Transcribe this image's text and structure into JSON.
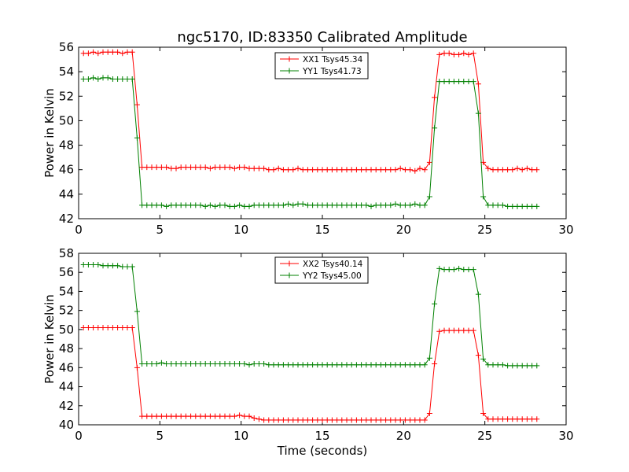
{
  "title": "ngc5170, ID:83350 Calibrated Amplitude",
  "colors": {
    "red": "#ff0000",
    "green": "#008000"
  },
  "chart_data": [
    {
      "type": "line",
      "xlabel": "",
      "ylabel": "Power in Kelvin",
      "xlim": [
        0,
        30
      ],
      "ylim": [
        42,
        56
      ],
      "xticks": [
        0,
        5,
        10,
        15,
        20,
        25,
        30
      ],
      "yticks": [
        42,
        44,
        46,
        48,
        50,
        52,
        54,
        56
      ],
      "legend_position": "top-center",
      "series": [
        {
          "name": "XX1 Tsys45.34",
          "color": "#ff0000",
          "x": [
            0.3,
            0.6,
            0.9,
            1.2,
            1.5,
            1.8,
            2.1,
            2.4,
            2.7,
            3.0,
            3.3,
            3.6,
            3.9,
            4.2,
            4.5,
            4.8,
            5.1,
            5.4,
            5.7,
            6.0,
            6.3,
            6.6,
            6.9,
            7.2,
            7.5,
            7.8,
            8.1,
            8.4,
            8.7,
            9.0,
            9.3,
            9.6,
            9.9,
            10.2,
            10.5,
            10.8,
            11.1,
            11.4,
            11.7,
            12.0,
            12.3,
            12.6,
            12.9,
            13.2,
            13.5,
            13.8,
            14.1,
            14.4,
            14.7,
            15.0,
            15.3,
            15.6,
            15.9,
            16.2,
            16.5,
            16.8,
            17.1,
            17.4,
            17.7,
            18.0,
            18.3,
            18.6,
            18.9,
            19.2,
            19.5,
            19.8,
            20.1,
            20.4,
            20.7,
            21.0,
            21.3,
            21.6,
            21.9,
            22.2,
            22.5,
            22.8,
            23.1,
            23.4,
            23.7,
            24.0,
            24.3,
            24.6,
            24.9,
            25.2,
            25.5,
            25.8,
            26.1,
            26.4,
            26.7,
            27.0,
            27.3,
            27.6,
            27.9,
            28.2
          ],
          "y": [
            55.5,
            55.5,
            55.6,
            55.5,
            55.6,
            55.6,
            55.6,
            55.6,
            55.5,
            55.6,
            55.6,
            51.3,
            46.2,
            46.2,
            46.2,
            46.2,
            46.2,
            46.2,
            46.1,
            46.1,
            46.2,
            46.2,
            46.2,
            46.2,
            46.2,
            46.2,
            46.1,
            46.2,
            46.2,
            46.2,
            46.2,
            46.1,
            46.2,
            46.2,
            46.1,
            46.1,
            46.1,
            46.1,
            46.0,
            46.0,
            46.1,
            46.0,
            46.0,
            46.0,
            46.1,
            46.0,
            46.0,
            46.0,
            46.0,
            46.0,
            46.0,
            46.0,
            46.0,
            46.0,
            46.0,
            46.0,
            46.0,
            46.0,
            46.0,
            46.0,
            46.0,
            46.0,
            46.0,
            46.0,
            46.0,
            46.1,
            46.0,
            46.0,
            45.9,
            46.1,
            46.0,
            46.6,
            51.9,
            55.4,
            55.5,
            55.5,
            55.4,
            55.4,
            55.5,
            55.4,
            55.5,
            53.0,
            46.6,
            46.1,
            46.0,
            46.0,
            46.0,
            46.0,
            46.0,
            46.1,
            46.0,
            46.1,
            46.0,
            46.0
          ]
        },
        {
          "name": "YY1 Tsys41.73",
          "color": "#008000",
          "x": [
            0.3,
            0.6,
            0.9,
            1.2,
            1.5,
            1.8,
            2.1,
            2.4,
            2.7,
            3.0,
            3.3,
            3.6,
            3.9,
            4.2,
            4.5,
            4.8,
            5.1,
            5.4,
            5.7,
            6.0,
            6.3,
            6.6,
            6.9,
            7.2,
            7.5,
            7.8,
            8.1,
            8.4,
            8.7,
            9.0,
            9.3,
            9.6,
            9.9,
            10.2,
            10.5,
            10.8,
            11.1,
            11.4,
            11.7,
            12.0,
            12.3,
            12.6,
            12.9,
            13.2,
            13.5,
            13.8,
            14.1,
            14.4,
            14.7,
            15.0,
            15.3,
            15.6,
            15.9,
            16.2,
            16.5,
            16.8,
            17.1,
            17.4,
            17.7,
            18.0,
            18.3,
            18.6,
            18.9,
            19.2,
            19.5,
            19.8,
            20.1,
            20.4,
            20.7,
            21.0,
            21.3,
            21.6,
            21.9,
            22.2,
            22.5,
            22.8,
            23.1,
            23.4,
            23.7,
            24.0,
            24.3,
            24.6,
            24.9,
            25.2,
            25.5,
            25.8,
            26.1,
            26.4,
            26.7,
            27.0,
            27.3,
            27.6,
            27.9,
            28.2
          ],
          "y": [
            53.4,
            53.4,
            53.5,
            53.4,
            53.5,
            53.5,
            53.4,
            53.4,
            53.4,
            53.4,
            53.4,
            48.6,
            43.1,
            43.1,
            43.1,
            43.1,
            43.1,
            43.0,
            43.1,
            43.1,
            43.1,
            43.1,
            43.1,
            43.1,
            43.1,
            43.0,
            43.1,
            43.0,
            43.1,
            43.1,
            43.0,
            43.0,
            43.1,
            43.0,
            43.0,
            43.1,
            43.1,
            43.1,
            43.1,
            43.1,
            43.1,
            43.1,
            43.2,
            43.1,
            43.2,
            43.2,
            43.1,
            43.1,
            43.1,
            43.1,
            43.1,
            43.1,
            43.1,
            43.1,
            43.1,
            43.1,
            43.1,
            43.1,
            43.1,
            43.0,
            43.1,
            43.1,
            43.1,
            43.1,
            43.2,
            43.1,
            43.1,
            43.1,
            43.2,
            43.1,
            43.1,
            43.8,
            49.4,
            53.2,
            53.2,
            53.2,
            53.2,
            53.2,
            53.2,
            53.2,
            53.2,
            50.6,
            43.8,
            43.1,
            43.1,
            43.1,
            43.1,
            43.0,
            43.0,
            43.0,
            43.0,
            43.0,
            43.0,
            43.0
          ]
        }
      ]
    },
    {
      "type": "line",
      "xlabel": "Time (seconds)",
      "ylabel": "Power in Kelvin",
      "xlim": [
        0,
        30
      ],
      "ylim": [
        40,
        58
      ],
      "xticks": [
        0,
        5,
        10,
        15,
        20,
        25,
        30
      ],
      "yticks": [
        40,
        42,
        44,
        46,
        48,
        50,
        52,
        54,
        56,
        58
      ],
      "legend_position": "top-center",
      "series": [
        {
          "name": "XX2 Tsys40.14",
          "color": "#ff0000",
          "x": [
            0.3,
            0.6,
            0.9,
            1.2,
            1.5,
            1.8,
            2.1,
            2.4,
            2.7,
            3.0,
            3.3,
            3.6,
            3.9,
            4.2,
            4.5,
            4.8,
            5.1,
            5.4,
            5.7,
            6.0,
            6.3,
            6.6,
            6.9,
            7.2,
            7.5,
            7.8,
            8.1,
            8.4,
            8.7,
            9.0,
            9.3,
            9.6,
            9.9,
            10.2,
            10.5,
            10.8,
            11.1,
            11.4,
            11.7,
            12.0,
            12.3,
            12.6,
            12.9,
            13.2,
            13.5,
            13.8,
            14.1,
            14.4,
            14.7,
            15.0,
            15.3,
            15.6,
            15.9,
            16.2,
            16.5,
            16.8,
            17.1,
            17.4,
            17.7,
            18.0,
            18.3,
            18.6,
            18.9,
            19.2,
            19.5,
            19.8,
            20.1,
            20.4,
            20.7,
            21.0,
            21.3,
            21.6,
            21.9,
            22.2,
            22.5,
            22.8,
            23.1,
            23.4,
            23.7,
            24.0,
            24.3,
            24.6,
            24.9,
            25.2,
            25.5,
            25.8,
            26.1,
            26.4,
            26.7,
            27.0,
            27.3,
            27.6,
            27.9,
            28.2
          ],
          "y": [
            50.2,
            50.2,
            50.2,
            50.2,
            50.2,
            50.2,
            50.2,
            50.2,
            50.2,
            50.2,
            50.2,
            46.0,
            40.9,
            40.9,
            40.9,
            40.9,
            40.9,
            40.9,
            40.9,
            40.9,
            40.9,
            40.9,
            40.9,
            40.9,
            40.9,
            40.9,
            40.9,
            40.9,
            40.9,
            40.9,
            40.9,
            40.9,
            41.0,
            40.9,
            40.9,
            40.7,
            40.6,
            40.5,
            40.5,
            40.5,
            40.5,
            40.5,
            40.5,
            40.5,
            40.5,
            40.5,
            40.5,
            40.5,
            40.5,
            40.5,
            40.5,
            40.5,
            40.5,
            40.5,
            40.5,
            40.5,
            40.5,
            40.5,
            40.5,
            40.5,
            40.5,
            40.5,
            40.5,
            40.5,
            40.5,
            40.5,
            40.5,
            40.5,
            40.5,
            40.5,
            40.5,
            41.2,
            46.4,
            49.8,
            49.9,
            49.9,
            49.9,
            49.9,
            49.9,
            49.9,
            49.9,
            47.3,
            41.2,
            40.6,
            40.6,
            40.6,
            40.6,
            40.6,
            40.6,
            40.6,
            40.6,
            40.6,
            40.6,
            40.6
          ]
        },
        {
          "name": "YY2 Tsys45.00",
          "color": "#008000",
          "x": [
            0.3,
            0.6,
            0.9,
            1.2,
            1.5,
            1.8,
            2.1,
            2.4,
            2.7,
            3.0,
            3.3,
            3.6,
            3.9,
            4.2,
            4.5,
            4.8,
            5.1,
            5.4,
            5.7,
            6.0,
            6.3,
            6.6,
            6.9,
            7.2,
            7.5,
            7.8,
            8.1,
            8.4,
            8.7,
            9.0,
            9.3,
            9.6,
            9.9,
            10.2,
            10.5,
            10.8,
            11.1,
            11.4,
            11.7,
            12.0,
            12.3,
            12.6,
            12.9,
            13.2,
            13.5,
            13.8,
            14.1,
            14.4,
            14.7,
            15.0,
            15.3,
            15.6,
            15.9,
            16.2,
            16.5,
            16.8,
            17.1,
            17.4,
            17.7,
            18.0,
            18.3,
            18.6,
            18.9,
            19.2,
            19.5,
            19.8,
            20.1,
            20.4,
            20.7,
            21.0,
            21.3,
            21.6,
            21.9,
            22.2,
            22.5,
            22.8,
            23.1,
            23.4,
            23.7,
            24.0,
            24.3,
            24.6,
            24.9,
            25.2,
            25.5,
            25.8,
            26.1,
            26.4,
            26.7,
            27.0,
            27.3,
            27.6,
            27.9,
            28.2
          ],
          "y": [
            56.8,
            56.8,
            56.8,
            56.8,
            56.7,
            56.7,
            56.7,
            56.7,
            56.6,
            56.6,
            56.6,
            51.9,
            46.4,
            46.4,
            46.4,
            46.4,
            46.5,
            46.4,
            46.4,
            46.4,
            46.4,
            46.4,
            46.4,
            46.4,
            46.4,
            46.4,
            46.4,
            46.4,
            46.4,
            46.4,
            46.4,
            46.4,
            46.4,
            46.4,
            46.3,
            46.4,
            46.4,
            46.4,
            46.3,
            46.3,
            46.3,
            46.3,
            46.3,
            46.3,
            46.3,
            46.3,
            46.3,
            46.3,
            46.3,
            46.3,
            46.3,
            46.3,
            46.3,
            46.3,
            46.3,
            46.3,
            46.3,
            46.3,
            46.3,
            46.3,
            46.3,
            46.3,
            46.3,
            46.3,
            46.3,
            46.3,
            46.3,
            46.3,
            46.3,
            46.3,
            46.3,
            47.0,
            52.7,
            56.4,
            56.3,
            56.3,
            56.3,
            56.4,
            56.3,
            56.3,
            56.3,
            53.7,
            46.9,
            46.3,
            46.3,
            46.3,
            46.3,
            46.2,
            46.2,
            46.2,
            46.2,
            46.2,
            46.2,
            46.2
          ]
        }
      ]
    }
  ]
}
